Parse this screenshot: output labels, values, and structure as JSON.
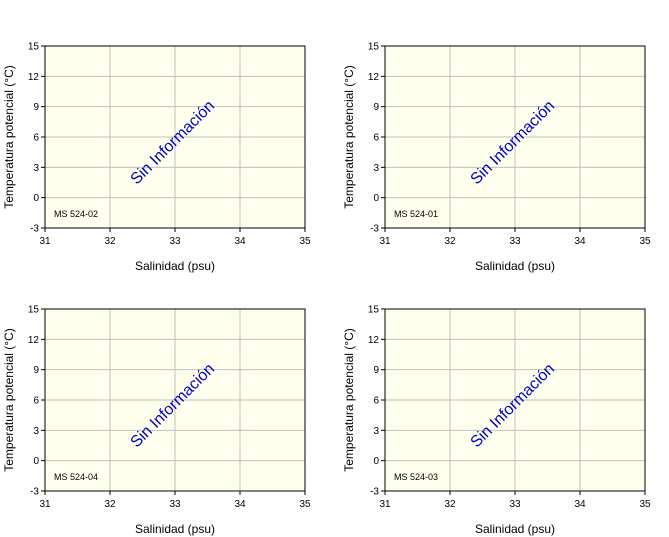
{
  "chart_data": [
    {
      "type": "scatter",
      "station": "MS 524-02",
      "xlabel": "Salinidad (psu)",
      "ylabel": "Temperatura potencial (°C)",
      "xlim": [
        31,
        35
      ],
      "ylim": [
        -3,
        15
      ],
      "xticks": [
        "31",
        "32",
        "33",
        "34",
        "35"
      ],
      "yticks": [
        "15",
        "12",
        "9",
        "6",
        "3",
        "0",
        "-3"
      ],
      "annotation": "Sin Información",
      "grid": true,
      "series": []
    },
    {
      "type": "scatter",
      "station": "MS 524-01",
      "xlabel": "Salinidad (psu)",
      "ylabel": "Temperatura potencial (°C)",
      "xlim": [
        31,
        35
      ],
      "ylim": [
        -3,
        15
      ],
      "xticks": [
        "31",
        "32",
        "33",
        "34",
        "35"
      ],
      "yticks": [
        "15",
        "12",
        "9",
        "6",
        "3",
        "0",
        "-3"
      ],
      "annotation": "Sin Información",
      "grid": true,
      "series": []
    },
    {
      "type": "scatter",
      "station": "MS 524-04",
      "xlabel": "Salinidad (psu)",
      "ylabel": "Temperatura potencial (°C)",
      "xlim": [
        31,
        35
      ],
      "ylim": [
        -3,
        15
      ],
      "xticks": [
        "31",
        "32",
        "33",
        "34",
        "35"
      ],
      "yticks": [
        "15",
        "12",
        "9",
        "6",
        "3",
        "0",
        "-3"
      ],
      "annotation": "Sin Información",
      "grid": true,
      "series": []
    },
    {
      "type": "scatter",
      "station": "MS 524-03",
      "xlabel": "Salinidad (psu)",
      "ylabel": "Temperatura potencial (°C)",
      "xlim": [
        31,
        35
      ],
      "ylim": [
        -3,
        15
      ],
      "xticks": [
        "31",
        "32",
        "33",
        "34",
        "35"
      ],
      "yticks": [
        "15",
        "12",
        "9",
        "6",
        "3",
        "0",
        "-3"
      ],
      "annotation": "Sin Información",
      "grid": true,
      "series": []
    }
  ],
  "colors": {
    "plot_background": "#ffffee",
    "gridline": "#c0c0c0",
    "axis": "#000000",
    "annotation": "#0000c0"
  }
}
